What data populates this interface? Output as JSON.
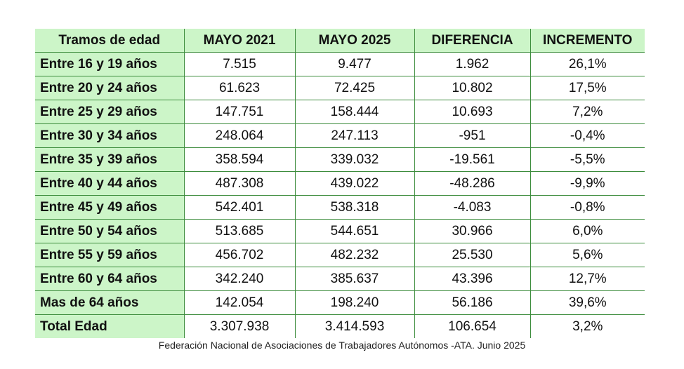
{
  "table": {
    "headers": [
      "Tramos de edad",
      "MAYO 2021",
      "MAYO 2025",
      "DIFERENCIA",
      "INCREMENTO"
    ],
    "rows": [
      [
        "Entre 16 y 19 años",
        "7.515",
        "9.477",
        "1.962",
        "26,1%"
      ],
      [
        "Entre 20 y 24 años",
        "61.623",
        "72.425",
        "10.802",
        "17,5%"
      ],
      [
        "Entre 25 y 29 años",
        "147.751",
        "158.444",
        "10.693",
        "7,2%"
      ],
      [
        "Entre 30 y 34 años",
        "248.064",
        "247.113",
        "-951",
        "-0,4%"
      ],
      [
        "Entre 35 y 39 años",
        "358.594",
        "339.032",
        "-19.561",
        "-5,5%"
      ],
      [
        "Entre 40 y 44 años",
        "487.308",
        "439.022",
        "-48.286",
        "-9,9%"
      ],
      [
        "Entre 45 y 49 años",
        "542.401",
        "538.318",
        "-4.083",
        "-0,8%"
      ],
      [
        "Entre 50 y 54 años",
        "513.685",
        "544.651",
        "30.966",
        "6,0%"
      ],
      [
        "Entre 55 y 59 años",
        "456.702",
        "482.232",
        "25.530",
        "5,6%"
      ],
      [
        "Entre 60 y 64 años",
        "342.240",
        "385.637",
        "43.396",
        "12,7%"
      ],
      [
        "Mas de 64 años",
        "142.054",
        "198.240",
        "56.186",
        "39,6%"
      ],
      [
        "Total Edad",
        "3.307.938",
        "3.414.593",
        "106.654",
        "3,2%"
      ]
    ]
  },
  "caption": "Federación Nacional de Asociaciones de Trabajadores Autónomos -ATA. Junio 2025",
  "colors": {
    "label_fill": "#ccf5c8",
    "border": "#3c8c3c"
  }
}
